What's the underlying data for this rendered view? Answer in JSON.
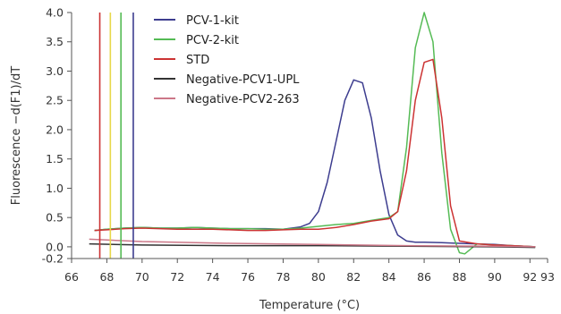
{
  "chart_data": {
    "type": "line",
    "title": "",
    "xlabel": "Temperature (°C)",
    "ylabel": "Fluorescence −d(F1)/dT",
    "xlim": [
      66,
      93
    ],
    "ylim": [
      -0.2,
      4.0
    ],
    "x_ticks": [
      66,
      68,
      70,
      72,
      74,
      76,
      78,
      80,
      82,
      84,
      86,
      88,
      90,
      92,
      93
    ],
    "y_ticks": [
      -0.2,
      0.0,
      0.5,
      1.0,
      1.5,
      2.0,
      2.5,
      3.0,
      3.5,
      4.0
    ],
    "x_tick_labels": [
      "66",
      "68",
      "70",
      "72",
      "74",
      "76",
      "78",
      "80",
      "82",
      "84",
      "86",
      "88",
      "90",
      "92",
      "93"
    ],
    "y_tick_labels": [
      "-0.2",
      "0.0",
      "0.5",
      "1.0",
      "1.5",
      "2.0",
      "2.5",
      "3.0",
      "3.5",
      "4.0"
    ],
    "grid": false,
    "legend_position": "top-center",
    "series": [
      {
        "name": "PCV-1-kit",
        "color": "#3d3d8f",
        "x": [
          67.3,
          68,
          69,
          70,
          71,
          72,
          73,
          74,
          75,
          76,
          77,
          78,
          79,
          79.5,
          80,
          80.5,
          81,
          81.5,
          82,
          82.5,
          83,
          83.5,
          84,
          84.5,
          85,
          85.5,
          86,
          87,
          88,
          89,
          90,
          91,
          92.3
        ],
        "y": [
          0.28,
          0.3,
          0.32,
          0.33,
          0.32,
          0.32,
          0.33,
          0.32,
          0.31,
          0.31,
          0.31,
          0.3,
          0.34,
          0.4,
          0.6,
          1.1,
          1.8,
          2.5,
          2.85,
          2.8,
          2.2,
          1.3,
          0.55,
          0.2,
          0.1,
          0.08,
          0.08,
          0.07,
          0.06,
          0.05,
          0.04,
          0.02,
          0.0
        ]
      },
      {
        "name": "PCV-2-kit",
        "color": "#55bb55",
        "x": [
          67.3,
          68,
          69,
          70,
          71,
          72,
          73,
          74,
          75,
          76,
          77,
          78,
          79,
          80,
          81,
          82,
          83,
          84,
          84.5,
          85,
          85.5,
          86,
          86.5,
          87,
          87.5,
          88,
          88.3,
          89,
          90,
          91,
          92.3
        ],
        "y": [
          0.28,
          0.3,
          0.32,
          0.33,
          0.32,
          0.32,
          0.33,
          0.32,
          0.31,
          0.31,
          0.3,
          0.3,
          0.32,
          0.35,
          0.38,
          0.4,
          0.45,
          0.5,
          0.6,
          1.7,
          3.4,
          4.0,
          3.5,
          1.6,
          0.3,
          -0.1,
          -0.12,
          0.05,
          0.03,
          0.02,
          0.0
        ]
      },
      {
        "name": "STD",
        "color": "#cc3333",
        "x": [
          67.3,
          68,
          69,
          70,
          71,
          72,
          73,
          74,
          75,
          76,
          77,
          78,
          79,
          80,
          81,
          82,
          83,
          84,
          84.5,
          85,
          85.5,
          86,
          86.5,
          87,
          87.5,
          88,
          89,
          90,
          91,
          92.3
        ],
        "y": [
          0.28,
          0.29,
          0.31,
          0.32,
          0.31,
          0.3,
          0.3,
          0.3,
          0.29,
          0.28,
          0.28,
          0.29,
          0.3,
          0.3,
          0.33,
          0.38,
          0.44,
          0.48,
          0.6,
          1.3,
          2.5,
          3.15,
          3.2,
          2.2,
          0.7,
          0.1,
          0.05,
          0.03,
          0.02,
          0.0
        ]
      },
      {
        "name": "Negative-PCV1-UPL",
        "color": "#333333",
        "x": [
          67.0,
          70,
          75,
          80,
          85,
          90,
          92.3
        ],
        "y": [
          0.05,
          0.03,
          0.02,
          0.02,
          0.01,
          0.0,
          -0.01
        ]
      },
      {
        "name": "Negative-PCV2-263",
        "color": "#cc7788",
        "x": [
          67.0,
          70,
          75,
          80,
          85,
          90,
          92.3
        ],
        "y": [
          0.13,
          0.09,
          0.06,
          0.04,
          0.02,
          0.01,
          0.0
        ]
      }
    ],
    "vertical_markers": [
      {
        "x": 67.6,
        "color": "#cc3333"
      },
      {
        "x": 68.2,
        "color": "#e8d84a"
      },
      {
        "x": 68.8,
        "color": "#55bb55"
      },
      {
        "x": 69.5,
        "color": "#3d3d8f"
      }
    ]
  }
}
